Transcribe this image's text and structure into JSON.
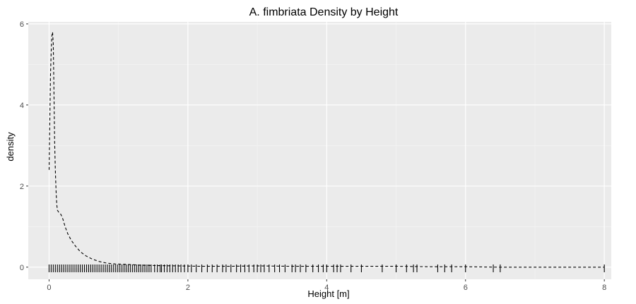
{
  "chart_data": {
    "type": "line",
    "title": "A. fimbriata Density by Height",
    "xlabel": "Height [m]",
    "ylabel": "density",
    "xlim": [
      -0.3,
      8.1
    ],
    "ylim": [
      -0.3,
      6.05
    ],
    "x_ticks": [
      0,
      2,
      4,
      6,
      8
    ],
    "y_ticks": [
      0,
      2,
      4,
      6
    ],
    "grid": true,
    "line_style": "dashed",
    "series": [
      {
        "x": [
          0.0,
          0.01,
          0.02,
          0.03,
          0.04,
          0.05,
          0.06,
          0.07,
          0.08,
          0.09,
          0.1,
          0.11,
          0.12,
          0.13,
          0.14,
          0.15,
          0.17,
          0.2,
          0.23,
          0.27,
          0.32,
          0.38,
          0.45,
          0.53,
          0.62,
          0.72,
          0.83,
          0.95,
          1.1,
          1.3,
          1.55,
          1.85,
          2.2,
          2.6,
          3.0,
          3.5,
          4.0,
          4.5,
          5.0,
          5.5,
          6.0,
          6.5,
          7.0,
          7.5,
          8.0
        ],
        "y": [
          2.4,
          3.5,
          4.7,
          5.3,
          5.7,
          5.8,
          5.5,
          4.4,
          3.1,
          2.4,
          1.9,
          1.55,
          1.4,
          1.38,
          1.35,
          1.33,
          1.3,
          1.18,
          1.0,
          0.82,
          0.66,
          0.52,
          0.38,
          0.28,
          0.2,
          0.14,
          0.1,
          0.08,
          0.07,
          0.05,
          0.04,
          0.03,
          0.02,
          0.02,
          0.03,
          0.02,
          0.02,
          0.02,
          0.02,
          0.01,
          0.01,
          0.0,
          0.0,
          0.0,
          0.0
        ]
      }
    ],
    "rug": [
      0.0,
      0.03,
      0.06,
      0.09,
      0.12,
      0.15,
      0.18,
      0.21,
      0.24,
      0.27,
      0.3,
      0.33,
      0.36,
      0.39,
      0.42,
      0.45,
      0.48,
      0.51,
      0.54,
      0.57,
      0.6,
      0.63,
      0.66,
      0.69,
      0.72,
      0.75,
      0.78,
      0.81,
      0.84,
      0.87,
      0.9,
      0.93,
      0.96,
      0.99,
      1.02,
      1.05,
      1.08,
      1.11,
      1.14,
      1.17,
      1.2,
      1.23,
      1.26,
      1.29,
      1.32,
      1.35,
      1.38,
      1.41,
      1.44,
      1.47,
      1.52,
      1.56,
      1.6,
      1.62,
      1.66,
      1.7,
      1.74,
      1.78,
      1.82,
      1.86,
      1.9,
      1.95,
      2.0,
      2.05,
      2.12,
      2.2,
      2.28,
      2.35,
      2.42,
      2.5,
      2.55,
      2.62,
      2.7,
      2.76,
      2.82,
      2.88,
      2.95,
      3.0,
      3.05,
      3.1,
      3.17,
      3.25,
      3.32,
      3.4,
      3.5,
      3.55,
      3.62,
      3.7,
      3.8,
      3.88,
      3.95,
      4.0,
      4.1,
      4.15,
      4.2,
      4.35,
      4.5,
      4.8,
      5.0,
      5.15,
      5.25,
      5.3,
      5.6,
      5.7,
      5.8,
      6.0,
      6.4,
      6.5,
      8.0
    ]
  }
}
